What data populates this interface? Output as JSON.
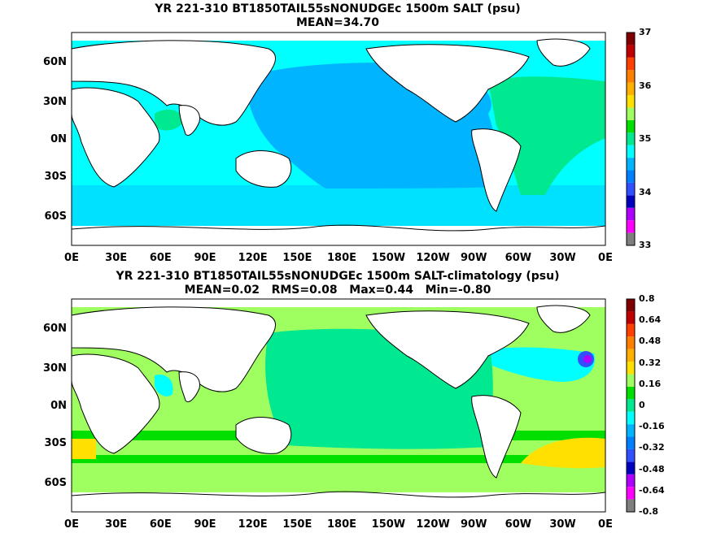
{
  "panels": [
    {
      "title_line1": "YR 221-310 BT1850TAIL55sNONUDGEc 1500m SALT (psu)",
      "title_line2": "MEAN=34.70",
      "lon_ticks": [
        "0E",
        "30E",
        "60E",
        "90E",
        "120E",
        "150E",
        "180E",
        "150W",
        "120W",
        "90W",
        "60W",
        "30W",
        "0E"
      ],
      "lat_ticks": [
        "60N",
        "30N",
        "0N",
        "30S",
        "60S"
      ],
      "colorbar_labels": [
        "37",
        "36",
        "35",
        "34",
        "33"
      ],
      "colorbar_colors": [
        "#7f7f7f",
        "#ff00ff",
        "#b000ff",
        "#0000c0",
        "#3050ff",
        "#0080ff",
        "#00b4ff",
        "#00ffff",
        "#00e890",
        "#00e000",
        "#a0ff60",
        "#ffe000",
        "#ffb000",
        "#ff8000",
        "#ff4000",
        "#c00000",
        "#800000"
      ]
    },
    {
      "title_line1": "YR 221-310 BT1850TAIL55sNONUDGEc 1500m SALT-climatology (psu)",
      "title_line2": "MEAN=0.02   RMS=0.08   Max=0.44   Min=-0.80",
      "lon_ticks": [
        "0E",
        "30E",
        "60E",
        "90E",
        "120E",
        "150E",
        "180E",
        "150W",
        "120W",
        "90W",
        "60W",
        "30W",
        "0E"
      ],
      "lat_ticks": [
        "60N",
        "30N",
        "0N",
        "30S",
        "60S"
      ],
      "colorbar_labels": [
        "0.8",
        "0.64",
        "0.48",
        "0.32",
        "0.16",
        "0",
        "-0.16",
        "-0.32",
        "-0.48",
        "-0.64",
        "-0.8"
      ],
      "colorbar_colors": [
        "#7f7f7f",
        "#ff00ff",
        "#b000ff",
        "#0000c0",
        "#3050ff",
        "#0080ff",
        "#00b4ff",
        "#00ffff",
        "#00e890",
        "#00e000",
        "#a0ff60",
        "#ffe000",
        "#ffb000",
        "#ff8000",
        "#ff4000",
        "#c00000",
        "#800000"
      ]
    }
  ]
}
